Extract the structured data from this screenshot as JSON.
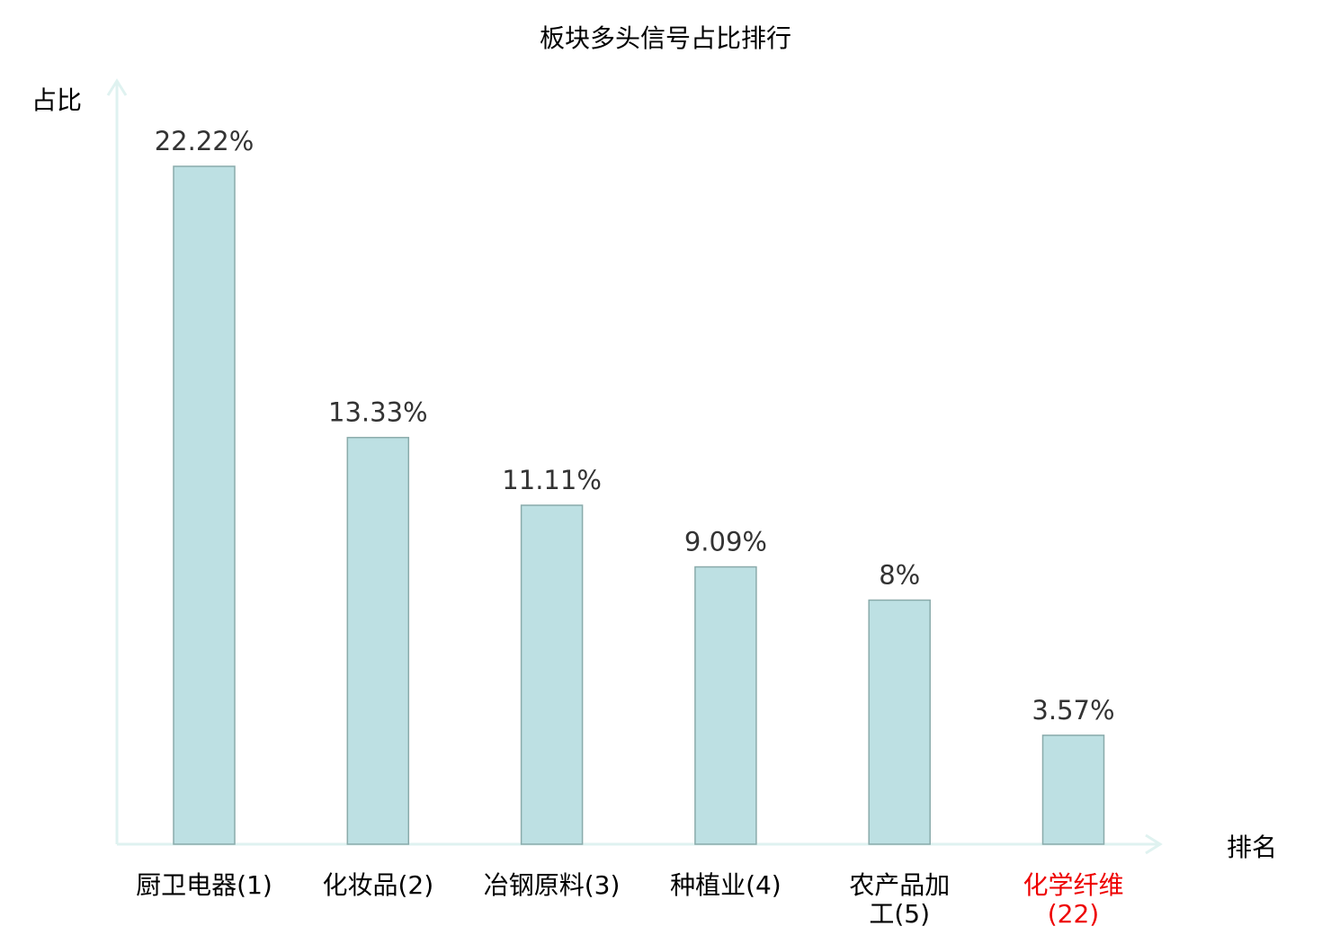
{
  "chart_data": {
    "type": "bar",
    "title": "板块多头信号占比排行",
    "ylabel": "占比",
    "xlabel": "排名",
    "categories": [
      "厨卫电器(1)",
      "化妆品(2)",
      "冶钢原料(3)",
      "种植业(4)",
      "农产品加工(5)",
      "化学纤维(22)"
    ],
    "values": [
      22.22,
      13.33,
      11.11,
      9.09,
      8,
      3.57
    ],
    "data_labels": [
      "22.22%",
      "13.33%",
      "11.11%",
      "9.09%",
      "8%",
      "3.57%"
    ],
    "highlight_index": 5,
    "ylim": [
      0,
      25
    ],
    "grid": false,
    "legend": "none",
    "colors": {
      "bar_fill": "#bde0e3",
      "bar_stroke": "#8aabab",
      "axis": "#dff2f0",
      "label_text": "#000000",
      "value_text": "#333333",
      "highlight_text": "#ee0000"
    }
  }
}
